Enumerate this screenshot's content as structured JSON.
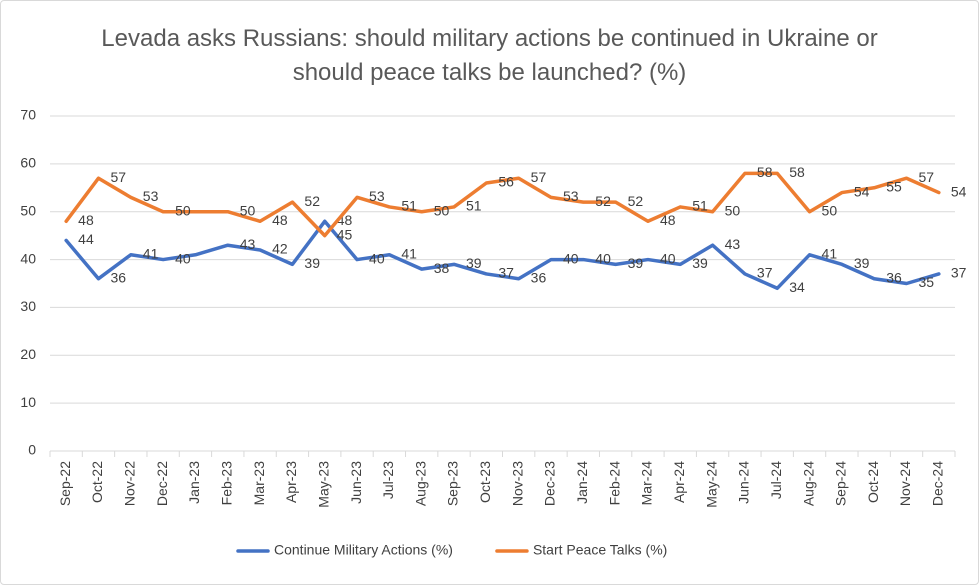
{
  "chart_data": {
    "type": "line",
    "title": "Levada asks Russians: should military actions be continued in Ukraine or should peace talks be launched? (%)",
    "categories": [
      "Sep-22",
      "Oct-22",
      "Nov-22",
      "Dec-22",
      "Jan-23",
      "Feb-23",
      "Mar-23",
      "Apr-23",
      "May-23",
      "Jun-23",
      "Jul-23",
      "Aug-23",
      "Sep-23",
      "Oct-23",
      "Nov-23",
      "Dec-23",
      "Jan-24",
      "Feb-24",
      "Mar-24",
      "Apr-24",
      "May-24",
      "Jun-24",
      "Jul-24",
      "Aug-24",
      "Sep-24",
      "Oct-24",
      "Nov-24",
      "Dec-24"
    ],
    "series": [
      {
        "name": "Continue Military Actions (%)",
        "color": "#4472c4",
        "values": [
          44,
          36,
          41,
          40,
          41,
          43,
          42,
          39,
          48,
          40,
          41,
          38,
          39,
          37,
          36,
          40,
          40,
          39,
          40,
          39,
          43,
          37,
          34,
          41,
          39,
          36,
          35,
          37
        ],
        "value_labels": [
          "44",
          "36",
          "41",
          "40",
          null,
          "43",
          "42",
          "39",
          "48",
          "40",
          "41",
          "38",
          "39",
          "37",
          "36",
          "40",
          "40",
          "39",
          "40",
          "39",
          "43",
          "37",
          "34",
          "41",
          "39",
          "36",
          "35",
          "37"
        ]
      },
      {
        "name": "Start Peace Talks (%)",
        "color": "#ed7d31",
        "values": [
          48,
          57,
          53,
          50,
          50,
          50,
          48,
          52,
          45,
          53,
          51,
          50,
          51,
          56,
          57,
          53,
          52,
          52,
          48,
          51,
          50,
          58,
          58,
          50,
          54,
          55,
          57,
          54
        ],
        "value_labels": [
          "48",
          "57",
          "53",
          "50",
          null,
          "50",
          "48",
          "52",
          "45",
          "53",
          "51",
          "50",
          "51",
          "56",
          "57",
          "53",
          "52",
          "52",
          "48",
          "51",
          "50",
          "58",
          "58",
          "50",
          "54",
          "55",
          "57",
          "54"
        ]
      }
    ],
    "ylim": [
      0,
      70
    ],
    "yticks": [
      0,
      10,
      20,
      30,
      40,
      50,
      60,
      70
    ],
    "grid": true,
    "legend": "bottom"
  }
}
